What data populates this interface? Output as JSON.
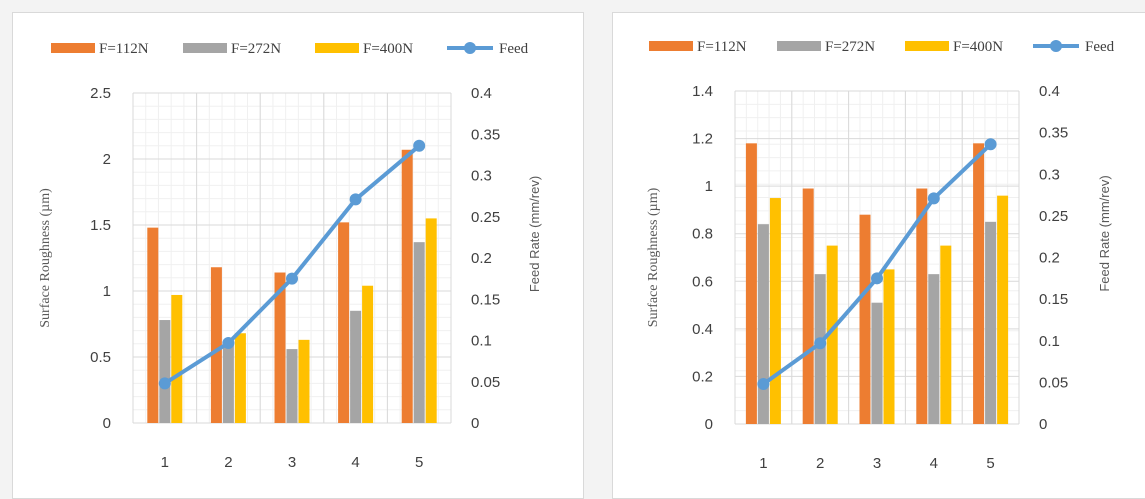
{
  "chart_data": [
    {
      "type": "bar",
      "categories": [
        "1",
        "2",
        "3",
        "4",
        "5"
      ],
      "series": [
        {
          "name": "F=112N",
          "values": [
            1.48,
            1.18,
            1.14,
            1.52,
            2.07
          ],
          "color": "#ed7d31"
        },
        {
          "name": "F=272N",
          "values": [
            0.78,
            0.61,
            0.56,
            0.85,
            1.37
          ],
          "color": "#a5a5a5"
        },
        {
          "name": "F=400N",
          "values": [
            0.97,
            0.68,
            0.63,
            1.04,
            1.55
          ],
          "color": "#ffc000"
        }
      ],
      "line_series": {
        "name": "Feed",
        "values": [
          0.048,
          0.097,
          0.175,
          0.271,
          0.336
        ],
        "color": "#5b9bd5",
        "axis": "right"
      },
      "ylabel": "Surface Roughness (µm)",
      "ylabel_right": "Feed Rate (mm/rev)",
      "ylim": [
        0,
        2.5
      ],
      "yticks": [
        "0",
        "0.5",
        "1",
        "1.5",
        "2",
        "2.5"
      ],
      "ylim_right": [
        0,
        0.4
      ],
      "yticks_right": [
        "0",
        "0.05",
        "0.1",
        "0.15",
        "0.2",
        "0.25",
        "0.3",
        "0.35",
        "0.4"
      ],
      "grid": true,
      "legend_position": "top"
    },
    {
      "type": "bar",
      "categories": [
        "1",
        "2",
        "3",
        "4",
        "5"
      ],
      "series": [
        {
          "name": "F=112N",
          "values": [
            1.18,
            0.99,
            0.88,
            0.99,
            1.18
          ],
          "color": "#ed7d31"
        },
        {
          "name": "F=272N",
          "values": [
            0.84,
            0.63,
            0.51,
            0.63,
            0.85
          ],
          "color": "#a5a5a5"
        },
        {
          "name": "F=400N",
          "values": [
            0.95,
            0.75,
            0.65,
            0.75,
            0.96
          ],
          "color": "#ffc000"
        }
      ],
      "line_series": {
        "name": "Feed",
        "values": [
          0.048,
          0.097,
          0.175,
          0.271,
          0.336
        ],
        "color": "#5b9bd5",
        "axis": "right"
      },
      "ylabel": "Surface Roughness (µm)",
      "ylabel_right": "Feed Rate (mm/rev)",
      "ylim": [
        0,
        1.4
      ],
      "yticks": [
        "0",
        "0.2",
        "0.4",
        "0.6",
        "0.8",
        "1",
        "1.2",
        "1.4"
      ],
      "ylim_right": [
        0,
        0.4
      ],
      "yticks_right": [
        "0",
        "0.05",
        "0.1",
        "0.15",
        "0.2",
        "0.25",
        "0.3",
        "0.35",
        "0.4"
      ],
      "grid": true,
      "legend_position": "top"
    }
  ]
}
